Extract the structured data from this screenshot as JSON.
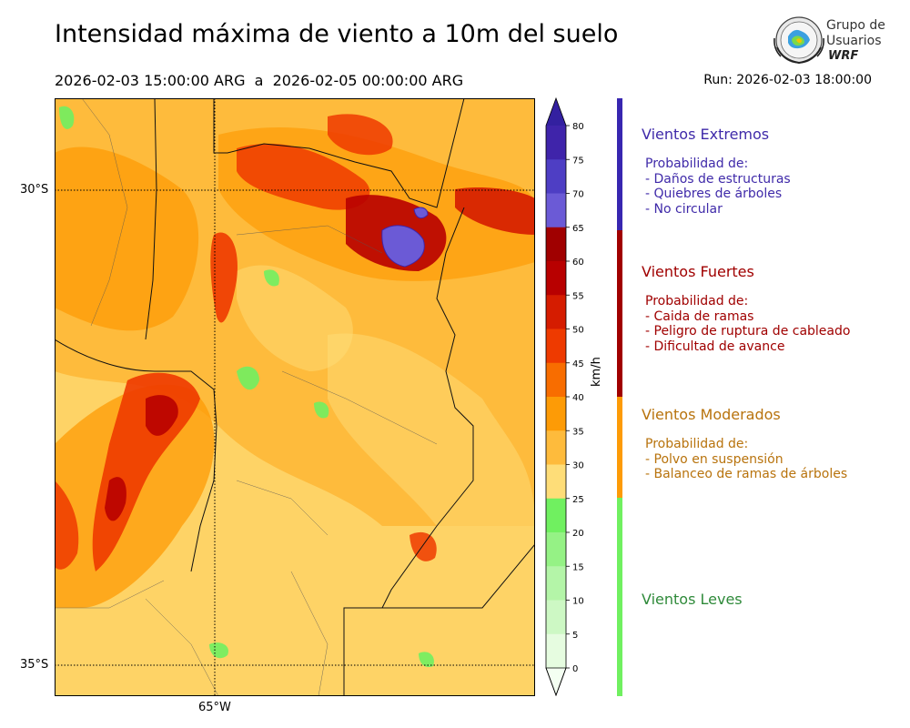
{
  "header": {
    "title": "Intensidad máxima de viento a 10m del suelo",
    "valid_range": "2026-02-03 15:00:00 ARG  a  2026-02-05 00:00:00 ARG",
    "run": "Run: 2026-02-03 18:00:00"
  },
  "logo": {
    "line1": "Grupo de",
    "line2": "Usuarios",
    "line3": "WRF",
    "icon": "globe-seal-icon"
  },
  "map": {
    "lat_labels": [
      "30°S",
      "35°S"
    ],
    "lon_labels": [
      "65°W"
    ]
  },
  "colorbar": {
    "unit": "km/h",
    "ticks": [
      "80",
      "75",
      "70",
      "65",
      "60",
      "55",
      "50",
      "45",
      "40",
      "35",
      "30",
      "25",
      "20",
      "15",
      "10",
      "5",
      "0"
    ],
    "colors": [
      "#3f24aa",
      "#4e3ec4",
      "#6b5ad6",
      "#a00000",
      "#b80000",
      "#d51c00",
      "#ee3a00",
      "#f86d00",
      "#fd9b06",
      "#febb3c",
      "#fedd78",
      "#70f060",
      "#95f285",
      "#b4f5a8",
      "#cdf8c4",
      "#e6fce0"
    ],
    "top_color": "#3320a0",
    "bottom_color": "#f4fff2"
  },
  "categories": [
    {
      "title": "Vientos Extremos",
      "color": "#3f2aa9",
      "band_color": "#3826b0",
      "heading": "Probabilidad de:",
      "items": [
        "- Daños de estructuras",
        "- Quiebres de árboles",
        "- No circular"
      ]
    },
    {
      "title": "Vientos Fuertes",
      "color": "#a00000",
      "band_color": "#a00000",
      "heading": "Probabilidad de:",
      "items": [
        "- Caida de ramas",
        "- Peligro de ruptura de cableado",
        "- Dificultad de avance"
      ]
    },
    {
      "title": "Vientos Moderados",
      "color": "#b8730d",
      "band_color": "#fd9b06",
      "heading": "Probabilidad de:",
      "items": [
        "- Polvo en suspensión",
        "- Balanceo de ramas de árboles"
      ]
    },
    {
      "title": "Vientos Leves",
      "color": "#2f8a3a",
      "band_color": "#70f060"
    }
  ]
}
